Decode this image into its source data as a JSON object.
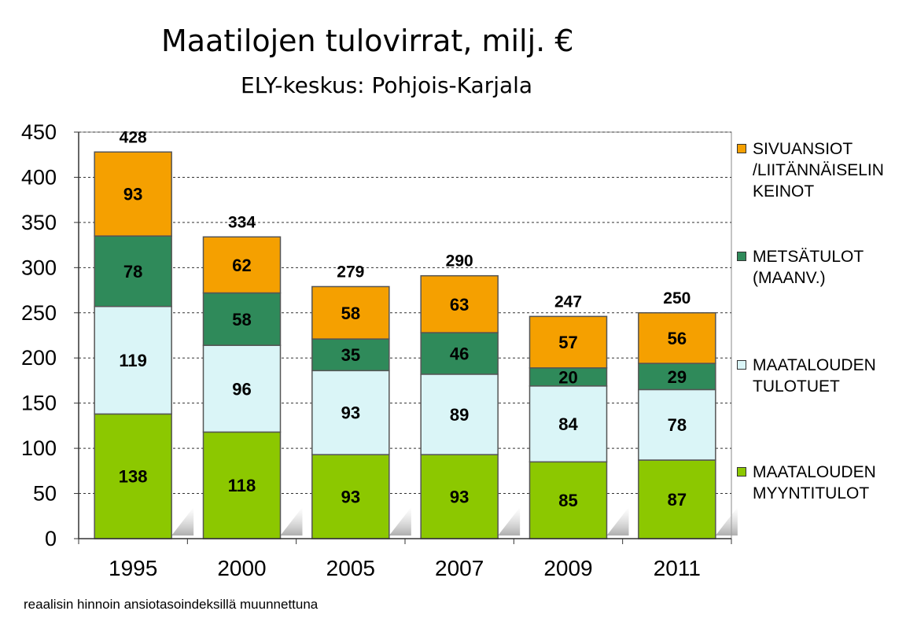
{
  "header": {
    "title": "Maatilojen tulovirrat, milj. €",
    "subtitle": "ELY-keskus: Pohjois-Karjala"
  },
  "footnote": "reaalisin hinnoin ansiotasoindeksillä muunnettuna",
  "chart_data": {
    "type": "bar",
    "stacked": true,
    "title": "Maatilojen tulovirrat, milj. €",
    "subtitle": "ELY-keskus: Pohjois-Karjala",
    "categories": [
      "1995",
      "2000",
      "2005",
      "2007",
      "2009",
      "2011"
    ],
    "series": [
      {
        "name": "MAATALOUDEN MYYNTITULOT",
        "color": "#8cc800",
        "values": [
          138,
          118,
          93,
          93,
          85,
          87
        ]
      },
      {
        "name": "MAATALOUDEN TULOTUET",
        "color": "#daf5f7",
        "values": [
          119,
          96,
          93,
          89,
          84,
          78
        ]
      },
      {
        "name": "METSÄTULOT (MAANV.)",
        "color": "#2f8a5a",
        "values": [
          78,
          58,
          35,
          46,
          20,
          29
        ]
      },
      {
        "name": "SIVUANSIOT /LIITÄNNÄISELINKEINOT",
        "color": "#f5a000",
        "values": [
          93,
          62,
          58,
          63,
          57,
          56
        ]
      }
    ],
    "totals": [
      "428",
      "334",
      "279",
      "290",
      "247",
      "250"
    ],
    "ylim": [
      0,
      450
    ],
    "yticks": [
      "0",
      "50",
      "100",
      "150",
      "200",
      "250",
      "300",
      "350",
      "400",
      "450"
    ],
    "grid": true,
    "legend_position": "right"
  },
  "legend": [
    {
      "lines": [
        "SIVUANSIOT",
        "/LIITÄNNÄISELIN",
        "KEINOT"
      ],
      "color": "#f5a000"
    },
    {
      "lines": [
        "METSÄTULOT",
        "(MAANV.)"
      ],
      "color": "#2f8a5a"
    },
    {
      "lines": [
        "MAATALOUDEN",
        "TULOTUET"
      ],
      "color": "#daf5f7"
    },
    {
      "lines": [
        "MAATALOUDEN",
        "MYYNTITULOT"
      ],
      "color": "#8cc800"
    }
  ]
}
